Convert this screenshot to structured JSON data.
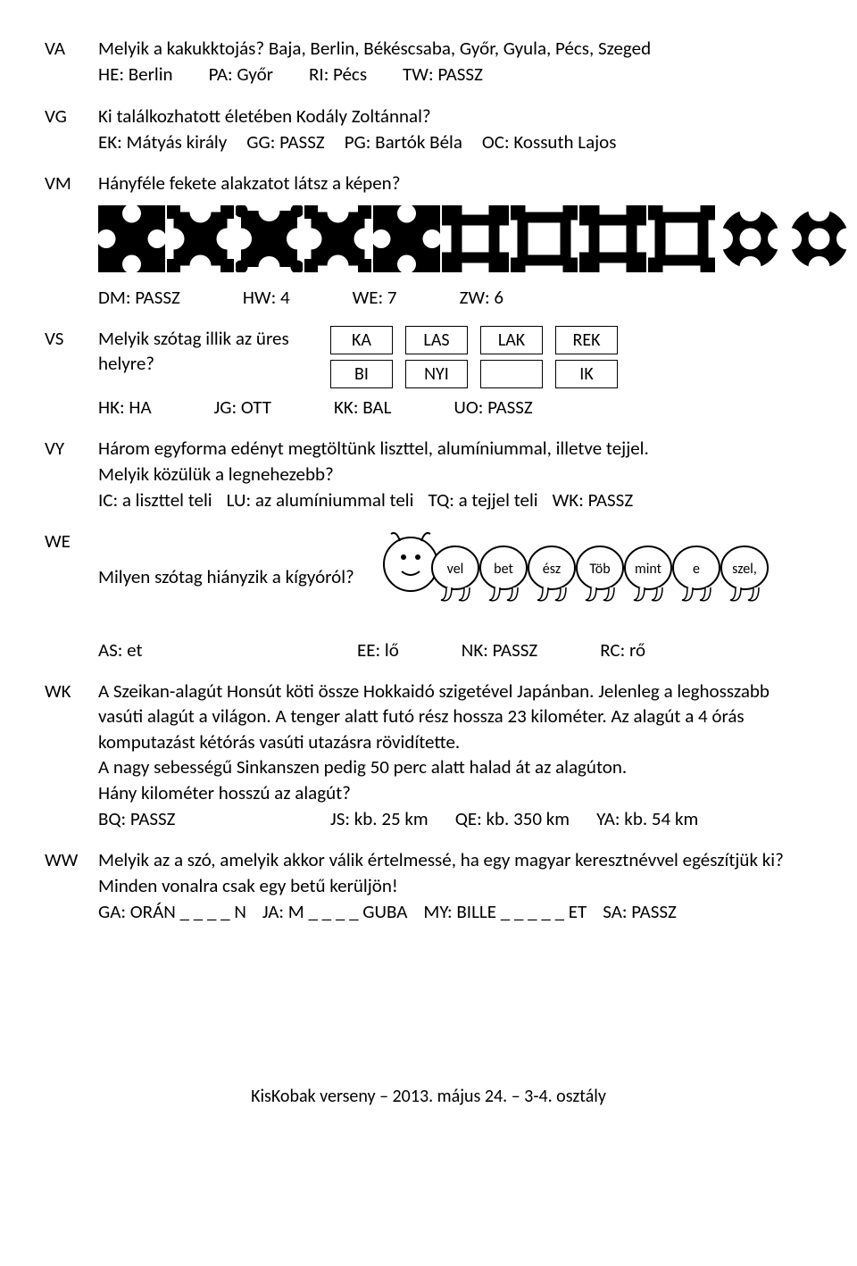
{
  "VA": {
    "code": "VA",
    "question": "Melyik a kakukktojás? Baja, Berlin, Békéscsaba, Győr, Gyula, Pécs, Szeged",
    "ans": {
      "HE": "HE:  Berlin",
      "PA": "PA:  Győr",
      "RI": "RI:  Pécs",
      "TW": "TW:  PASSZ"
    }
  },
  "VG": {
    "code": "VG",
    "question": "Ki találkozhatott életében Kodály Zoltánnal?",
    "ans": {
      "EK": "EK:  Mátyás király",
      "GG": "GG:  PASSZ",
      "PG": "PG:  Bartók Béla",
      "OC": "OC:  Kossuth Lajos"
    }
  },
  "VM": {
    "code": "VM",
    "question": "Hányféle fekete alakzatot látsz a képen?",
    "ans": {
      "DM": "DM:  PASSZ",
      "HW": "HW:  4",
      "WE": "WE:  7",
      "ZW": "ZW:  6"
    }
  },
  "VS": {
    "code": "VS",
    "line1": "Melyik szótag illik az üres",
    "line2": "helyre?",
    "grid": {
      "c1": [
        "KA",
        "BI"
      ],
      "c2": [
        "LAS",
        "NYI"
      ],
      "c3": [
        "LAK",
        ""
      ],
      "c4": [
        "REK",
        "IK"
      ]
    },
    "ans": {
      "HK": "HK:  HA",
      "JG": "JG:  OTT",
      "KK": "KK: BAL",
      "UO": "UO:  PASSZ"
    }
  },
  "VY": {
    "code": "VY",
    "q1": "Három egyforma edényt megtöltünk liszttel, alumíniummal, illetve tejjel.",
    "q2": "Melyik közülük a legnehezebb?",
    "ans": {
      "IC": "IC:  a liszttel teli",
      "LU": "LU:  az alumíniummal teli",
      "TQ": "TQ:  a tejjel teli",
      "WK": "WK:  PASSZ"
    }
  },
  "WE": {
    "code": "WE",
    "question": "Milyen szótag hiányzik a kígyóról?",
    "segments": [
      "vel",
      "bet",
      "ész",
      "Töb",
      "mint",
      "e",
      "szel,"
    ],
    "ans": {
      "AS": "AS:  et",
      "EE": "EE:  lő",
      "NK": "NK:  PASSZ",
      "RC": "RC:  rő"
    }
  },
  "WK": {
    "code": "WK",
    "para": "A Szeikan-alagút Honsút köti össze Hokkaidó szigetével Japánban. Jelenleg a leghosszabb vasúti alagút a világon. A tenger alatt futó rész hossza 23 kilométer. Az alagút a 4 órás komputazást kétórás vasúti utazásra rövidítette.",
    "para2": "A nagy sebességű Sinkanszen pedig 50 perc alatt halad át az alagúton.",
    "para3": "Hány kilométer hosszú az alagút?",
    "ans": {
      "BQ": "BQ:  PASSZ",
      "JS": "JS:  kb. 25 km",
      "QE": "QE:  kb. 350 km",
      "YA": "YA: kb. 54 km"
    }
  },
  "WW": {
    "code": "WW",
    "q1": "Melyik az a szó, amelyik akkor válik értelmessé, ha egy magyar keresztnévvel egészítjük ki? Minden vonalra csak egy betű kerüljön!",
    "ans": {
      "GA": "GA:  ORÁN _ _ _ _ N",
      "JA": "JA:  M _ _ _ _ GUBA",
      "MY": "MY:  BILLE _ _ _ _ _ ET",
      "SA": "SA:  PASSZ"
    }
  },
  "footer": "KisKobak verseny – 2013. május 24. – 3-4. osztály",
  "shapes": {
    "fill": "#000000",
    "sequence": [
      "A",
      "B",
      "C",
      "B",
      "A",
      "D",
      "E",
      "D",
      "E",
      "F",
      "F"
    ]
  }
}
